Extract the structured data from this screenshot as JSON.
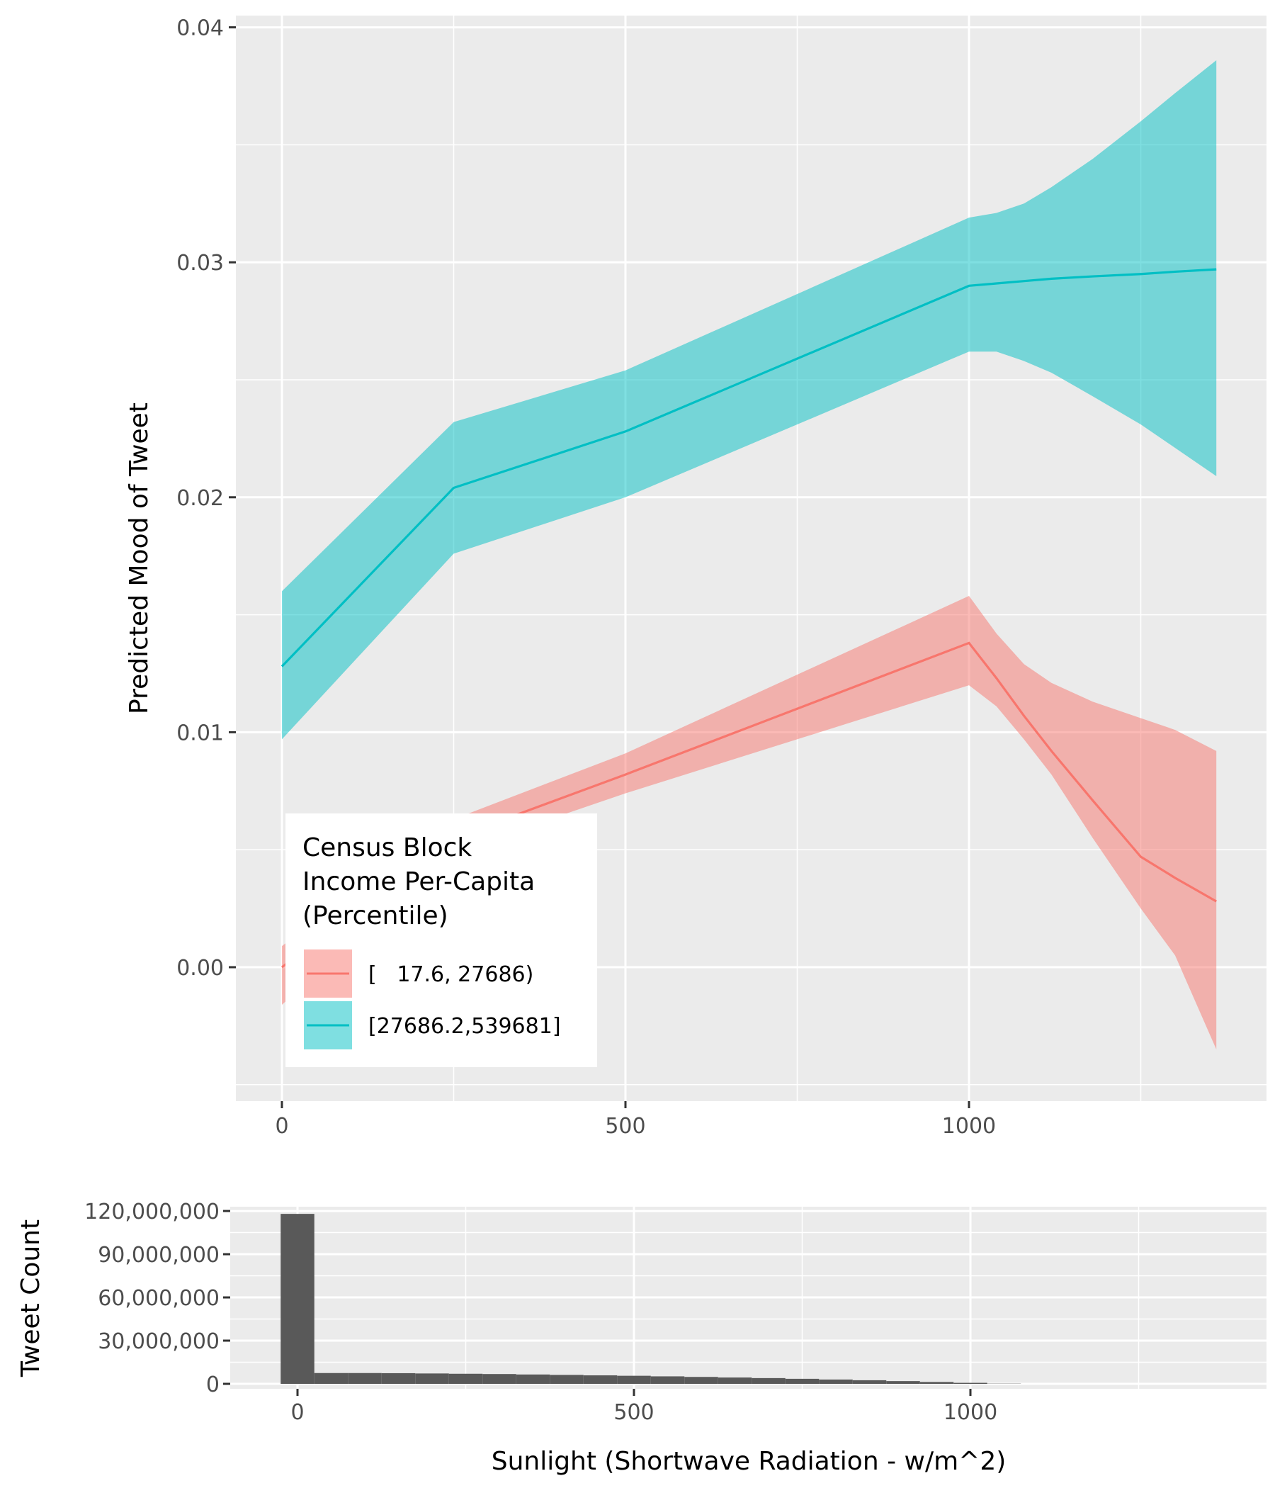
{
  "chart_data": [
    {
      "type": "area",
      "ylabel": "Predicted Mood of Tweet",
      "xlim": [
        -67,
        1433
      ],
      "ylim": [
        -0.0057,
        0.0405
      ],
      "x_ticks": [
        0,
        500,
        1000
      ],
      "x_tick_labels": [
        "0",
        "500",
        "1000"
      ],
      "y_ticks": [
        0.0,
        0.01,
        0.02,
        0.03,
        0.04
      ],
      "y_tick_labels": [
        "0.00",
        "0.01",
        "0.02",
        "0.03",
        "0.04"
      ],
      "grid": true,
      "legend": {
        "title": [
          "Census Block",
          "Income Per-Capita",
          "(Percentile)"
        ],
        "placement": "bottom-left inside"
      },
      "series": [
        {
          "name": "[   17.6, 27686)",
          "color": "#F8766D",
          "x": [
            0,
            250,
            500,
            1000,
            1040,
            1080,
            1120,
            1180,
            1250,
            1300,
            1360
          ],
          "y": [
            0.0,
            0.0055,
            0.0082,
            0.0138,
            0.0123,
            0.0107,
            0.0092,
            0.0071,
            0.0047,
            0.0038,
            0.0028
          ],
          "lower": [
            -0.0016,
            0.0049,
            0.0074,
            0.012,
            0.0111,
            0.0097,
            0.0082,
            0.0055,
            0.0025,
            0.0005,
            -0.0035
          ],
          "upper": [
            0.0009,
            0.0063,
            0.0091,
            0.0158,
            0.0142,
            0.0129,
            0.0121,
            0.0113,
            0.0106,
            0.0101,
            0.0092
          ]
        },
        {
          "name": "[27686.2,539681]",
          "color": "#00BFC4",
          "x": [
            0,
            250,
            500,
            1000,
            1040,
            1080,
            1120,
            1180,
            1250,
            1300,
            1360
          ],
          "y": [
            0.0128,
            0.0204,
            0.0228,
            0.029,
            0.0291,
            0.0292,
            0.0293,
            0.0294,
            0.0295,
            0.0296,
            0.0297
          ],
          "lower": [
            0.0097,
            0.0176,
            0.02,
            0.0262,
            0.0262,
            0.0258,
            0.0253,
            0.0243,
            0.0231,
            0.0221,
            0.0209
          ],
          "upper": [
            0.016,
            0.0232,
            0.0254,
            0.0319,
            0.0321,
            0.0325,
            0.0332,
            0.0344,
            0.036,
            0.0372,
            0.0386
          ]
        }
      ]
    },
    {
      "type": "bar",
      "xlabel": "Sunlight (Shortwave Radiation - w/m^2)",
      "ylabel": "Tweet Count",
      "xlim": [
        -100,
        1440
      ],
      "ylim": [
        0,
        122000000
      ],
      "x_ticks": [
        0,
        500,
        1000
      ],
      "x_tick_labels": [
        "0",
        "500",
        "1000"
      ],
      "y_ticks": [
        0,
        30000000,
        60000000,
        90000000,
        120000000
      ],
      "y_tick_labels": [
        "0",
        "30,000,000",
        "60,000,000",
        "90,000,000",
        "120,000,000"
      ],
      "grid": true,
      "color": "#595959",
      "bin_width": 50,
      "bin_centers": [
        0,
        50,
        100,
        150,
        200,
        250,
        300,
        350,
        400,
        450,
        500,
        550,
        600,
        650,
        700,
        750,
        800,
        850,
        900,
        950,
        1000,
        1050
      ],
      "values": [
        118000000,
        7500000,
        7500000,
        7400000,
        7200000,
        7000000,
        6800000,
        6500000,
        6200000,
        5900000,
        5600000,
        5200000,
        4800000,
        4400000,
        4000000,
        3500000,
        3000000,
        2500000,
        1900000,
        1300000,
        700000,
        150000
      ]
    }
  ]
}
